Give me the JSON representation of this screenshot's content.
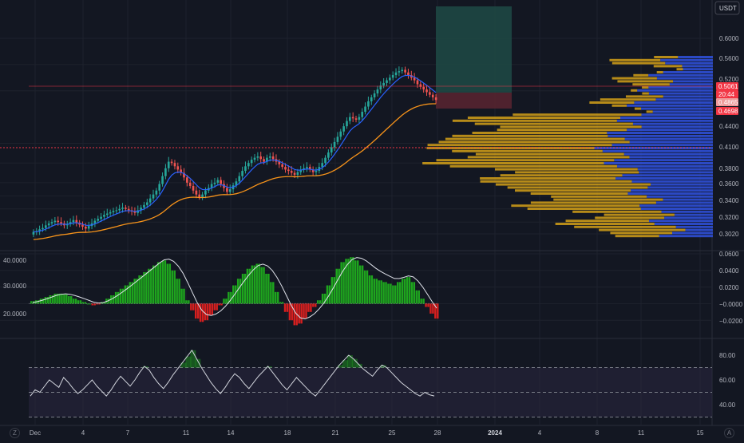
{
  "header": {
    "currency_label": "USDT"
  },
  "colors": {
    "background": "#131722",
    "grid": "#1e222d",
    "candle_up": "#26a69a",
    "candle_down": "#ef5350",
    "ema_fast": "#2962ff",
    "ema_slow": "#f7931a",
    "vp_up": "#2f4fd6",
    "vp_down": "#d4a017",
    "macd_up": "#1ea51e",
    "macd_down": "#d61f1f",
    "rsi_line": "#d1d4dc",
    "rsi_band": "#2a2740",
    "price_line": "#f23645",
    "target_zone": "#1f4a45",
    "stop_zone": "#5a2430"
  },
  "price_axis": {
    "labels": [
      "0.6000",
      "0.5600",
      "0.5200",
      "0.4400",
      "0.4100",
      "0.3800",
      "0.3600",
      "0.3400",
      "0.3200",
      "0.3020"
    ],
    "markers": [
      {
        "label": "0.5061",
        "color": "#f23645"
      },
      {
        "label": "20:44",
        "color": "#f23645"
      },
      {
        "label": "0.4865",
        "color": "#ef9a9a"
      },
      {
        "label": "0.4698",
        "color": "#f23645"
      }
    ]
  },
  "macd_axis": {
    "left_labels": [
      "40.0000",
      "30.0000",
      "20.0000"
    ],
    "right_labels": [
      "0.0600",
      "0.0400",
      "0.0200",
      "−0.0000",
      "−0.0200"
    ]
  },
  "rsi_axis": {
    "labels": [
      "80.00",
      "60.00",
      "40.00"
    ]
  },
  "time_axis": {
    "labels": [
      "Dec",
      "4",
      "7",
      "11",
      "14",
      "18",
      "21",
      "25",
      "28",
      "2024",
      "4",
      "8",
      "11",
      "15"
    ]
  },
  "footer": {
    "left_button": "Z",
    "right_button": "A"
  },
  "chart_data": [
    {
      "type": "candlestick",
      "title": "",
      "ylim": [
        0.29,
        0.64
      ],
      "x_range_days": [
        0,
        45
      ],
      "overlays": [
        "ema_fast",
        "ema_slow",
        "volume_profile",
        "long_position_box"
      ],
      "closes": [
        0.305,
        0.306,
        0.309,
        0.311,
        0.315,
        0.318,
        0.32,
        0.322,
        0.32,
        0.318,
        0.315,
        0.317,
        0.32,
        0.323,
        0.319,
        0.316,
        0.313,
        0.31,
        0.314,
        0.318,
        0.322,
        0.325,
        0.328,
        0.331,
        0.333,
        0.335,
        0.337,
        0.338,
        0.34,
        0.342,
        0.34,
        0.338,
        0.336,
        0.334,
        0.338,
        0.342,
        0.346,
        0.35,
        0.356,
        0.362,
        0.368,
        0.378,
        0.39,
        0.402,
        0.412,
        0.41,
        0.405,
        0.4,
        0.395,
        0.388,
        0.38,
        0.375,
        0.368,
        0.362,
        0.358,
        0.362,
        0.368,
        0.372,
        0.378,
        0.38,
        0.384,
        0.378,
        0.372,
        0.366,
        0.37,
        0.376,
        0.382,
        0.39,
        0.398,
        0.405,
        0.41,
        0.415,
        0.418,
        0.42,
        0.416,
        0.412,
        0.418,
        0.42,
        0.416,
        0.412,
        0.408,
        0.404,
        0.4,
        0.398,
        0.395,
        0.392,
        0.396,
        0.4,
        0.402,
        0.404,
        0.4,
        0.396,
        0.398,
        0.404,
        0.41,
        0.418,
        0.426,
        0.434,
        0.442,
        0.45,
        0.458,
        0.466,
        0.474,
        0.48,
        0.478,
        0.476,
        0.48,
        0.488,
        0.496,
        0.504,
        0.51,
        0.516,
        0.522,
        0.528,
        0.532,
        0.536,
        0.54,
        0.544,
        0.548,
        0.55,
        0.552,
        0.548,
        0.544,
        0.54,
        0.536,
        0.53,
        0.526,
        0.522,
        0.518,
        0.514,
        0.51,
        0.506
      ]
    },
    {
      "type": "bar",
      "title": "",
      "ylim": [
        -0.04,
        0.06
      ],
      "values": [
        0.003,
        0.004,
        0.006,
        0.008,
        0.01,
        0.012,
        0.012,
        0.011,
        0.009,
        0.006,
        0.004,
        0.002,
        0.0,
        -0.002,
        -0.001,
        0.002,
        0.006,
        0.01,
        0.014,
        0.018,
        0.022,
        0.026,
        0.03,
        0.034,
        0.038,
        0.042,
        0.046,
        0.05,
        0.052,
        0.048,
        0.04,
        0.03,
        0.018,
        0.004,
        -0.008,
        -0.018,
        -0.022,
        -0.02,
        -0.014,
        -0.008,
        -0.002,
        0.006,
        0.014,
        0.022,
        0.03,
        0.036,
        0.042,
        0.046,
        0.048,
        0.044,
        0.036,
        0.026,
        0.014,
        0.002,
        -0.01,
        -0.02,
        -0.026,
        -0.024,
        -0.018,
        -0.01,
        -0.004,
        0.004,
        0.012,
        0.022,
        0.032,
        0.042,
        0.05,
        0.054,
        0.056,
        0.052,
        0.046,
        0.04,
        0.034,
        0.03,
        0.028,
        0.026,
        0.024,
        0.022,
        0.026,
        0.03,
        0.032,
        0.026,
        0.016,
        0.006,
        -0.004,
        -0.012,
        -0.018
      ]
    },
    {
      "type": "line",
      "title": "",
      "ylim": [
        30,
        90
      ],
      "band": [
        30,
        70
      ],
      "values": [
        47,
        52,
        50,
        55,
        60,
        57,
        54,
        62,
        58,
        53,
        49,
        52,
        56,
        60,
        55,
        51,
        47,
        52,
        58,
        63,
        59,
        55,
        60,
        66,
        71,
        68,
        62,
        57,
        53,
        58,
        64,
        69,
        74,
        79,
        84,
        77,
        70,
        64,
        58,
        53,
        49,
        54,
        60,
        65,
        62,
        57,
        53,
        58,
        63,
        67,
        71,
        66,
        61,
        56,
        52,
        57,
        62,
        58,
        54,
        50,
        47,
        52,
        57,
        62,
        67,
        72,
        76,
        80,
        77,
        73,
        69,
        66,
        63,
        68,
        72,
        70,
        66,
        62,
        58,
        55,
        52,
        49,
        47,
        50,
        48,
        47
      ]
    }
  ]
}
